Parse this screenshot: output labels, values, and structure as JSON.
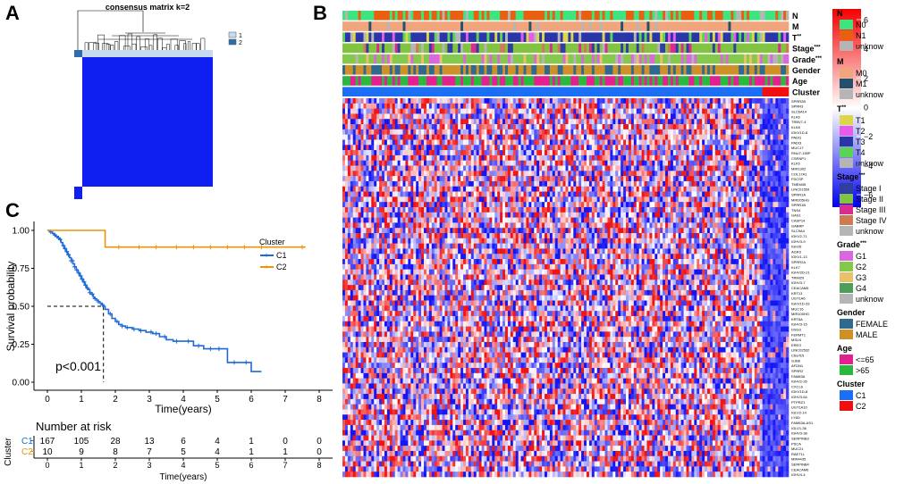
{
  "panels": {
    "a": {
      "letter": "A",
      "title": "consensus matrix k=2",
      "legend": [
        "1",
        "2"
      ],
      "colors": {
        "c1": "#c7dbef",
        "c2": "#2f6eaa",
        "matrix": "#0f1ff2",
        "white": "#ffffff"
      }
    },
    "b": {
      "letter": "B",
      "tracks": [
        {
          "name": "N",
          "sup": ""
        },
        {
          "name": "M",
          "sup": ""
        },
        {
          "name": "T",
          "sup": "**"
        },
        {
          "name": "Stage",
          "sup": "***"
        },
        {
          "name": "Grade",
          "sup": "***"
        },
        {
          "name": "Gender",
          "sup": ""
        },
        {
          "name": "Age",
          "sup": ""
        },
        {
          "name": "Cluster",
          "sup": ""
        }
      ],
      "genes": [
        "SPRR2B",
        "SPRR3",
        "SLC6A14",
        "KLK6",
        "TRBV7-4",
        "KLK8",
        "IGKV1D-8",
        "PADI1",
        "PADI3",
        "MUC17",
        "RNU7-155P",
        "CSRNP1",
        "KLK5",
        "MIR1302",
        "COL17A1",
        "FDCSP",
        "TMEM45",
        "LINC01559",
        "SPRR1A",
        "MIR205HG",
        "SPRR1B",
        "TNS4",
        "GAS1",
        "CASP14",
        "GABRP",
        "SLC9A4",
        "IGKV2-71",
        "IGHV3-9",
        "IGHJ6",
        "AGR3",
        "IGKV1-13",
        "SPRR2A",
        "KLK7",
        "IGHV2D-21",
        "TRIM29",
        "IGHV3-7",
        "CEACAM5",
        "KRT13",
        "UGT1A6",
        "IGKV1D-33",
        "MUC16",
        "MIR100HG",
        "KRT6A",
        "IGHV3-15",
        "DSG3",
        "FERMT1",
        "MSLN",
        "EREG",
        "LINC02532",
        "C6orf15",
        "GJB6",
        "AFDN1",
        "SPRR2",
        "FAM83A",
        "IGHV2-26",
        "CXCL6",
        "IGKV1D-8",
        "IGHV3-64",
        "PTPRZ1",
        "UGT1A10",
        "IGLV2-14",
        "LY6D",
        "FAM83A-AS1",
        "IGLV1-36",
        "IGHV3-38",
        "SERPINB3",
        "PSCA",
        "MUC21",
        "RAET1L",
        "MIR4435",
        "SERPINB4",
        "CEACAM6",
        "IGHV4-4"
      ],
      "colorbar_ticks": [
        "6",
        "4",
        "2",
        "0",
        "−2",
        "−4",
        "−6"
      ],
      "legend_groups": [
        {
          "title": "N",
          "sup": "",
          "items": [
            {
              "label": "N0",
              "color": "#3ee47e"
            },
            {
              "label": "N1",
              "color": "#e8600f"
            },
            {
              "label": "unknow",
              "color": "#b5b5b5"
            }
          ]
        },
        {
          "title": "M",
          "sup": "",
          "items": [
            {
              "label": "M0",
              "color": "#f1a57d"
            },
            {
              "label": "M1",
              "color": "#24506e"
            },
            {
              "label": "unknow",
              "color": "#b5b5b5"
            }
          ]
        },
        {
          "title": "T",
          "sup": "**",
          "items": [
            {
              "label": "T1",
              "color": "#dcd64a"
            },
            {
              "label": "T2",
              "color": "#e65be8"
            },
            {
              "label": "T3",
              "color": "#2a35a8"
            },
            {
              "label": "T4",
              "color": "#5bd356"
            },
            {
              "label": "unknow",
              "color": "#b5b5b5"
            }
          ]
        },
        {
          "title": "Stage",
          "sup": "***",
          "items": [
            {
              "label": "Stage I",
              "color": "#2f3f9e"
            },
            {
              "label": "Stage II",
              "color": "#82c341"
            },
            {
              "label": "Stage III",
              "color": "#d82c8f"
            },
            {
              "label": "Stage IV",
              "color": "#cf7b52"
            },
            {
              "label": "unknow",
              "color": "#b5b5b5"
            }
          ]
        },
        {
          "title": "Grade",
          "sup": "***",
          "items": [
            {
              "label": "G1",
              "color": "#d968dd"
            },
            {
              "label": "G2",
              "color": "#84c94c"
            },
            {
              "label": "G3",
              "color": "#e8c16a"
            },
            {
              "label": "G4",
              "color": "#4f9d5a"
            },
            {
              "label": "unknow",
              "color": "#b5b5b5"
            }
          ]
        },
        {
          "title": "Gender",
          "sup": "",
          "items": [
            {
              "label": "FEMALE",
              "color": "#2e6a8e"
            },
            {
              "label": "MALE",
              "color": "#cf9028"
            }
          ]
        },
        {
          "title": "Age",
          "sup": "",
          "items": [
            {
              "label": "<=65",
              "color": "#e3208f"
            },
            {
              "label": ">65",
              "color": "#2ab93e"
            }
          ]
        },
        {
          "title": "Cluster",
          "sup": "",
          "items": [
            {
              "label": "C1",
              "color": "#1b6ff5"
            },
            {
              "label": "C2",
              "color": "#f20e0e"
            }
          ]
        }
      ]
    },
    "c": {
      "letter": "C",
      "ylabel": "Survival probability",
      "xlabel": "Time(years)",
      "pvalue": "p<0.001",
      "legend_title": "Cluster",
      "risk_title": "Number at risk",
      "risk_ylabel": "Cluster",
      "risk_xlabel": "Time(years)",
      "series_colors": {
        "C1": "#1e6ad6",
        "C2": "#e8940c"
      }
    }
  },
  "chart_data": {
    "type": "line",
    "title": "",
    "xlabel": "Time(years)",
    "ylabel": "Survival probability",
    "xlim": [
      0,
      8
    ],
    "ylim": [
      0,
      1
    ],
    "xticks": [
      "0",
      "1",
      "2",
      "3",
      "4",
      "5",
      "6",
      "7",
      "8"
    ],
    "yticks": [
      "0.00",
      "0.25",
      "0.50",
      "0.75",
      "1.00"
    ],
    "median_survival_C1": 1.65,
    "series": [
      {
        "name": "C1",
        "x": [
          0,
          0.08,
          0.15,
          0.2,
          0.25,
          0.3,
          0.35,
          0.4,
          0.45,
          0.5,
          0.55,
          0.6,
          0.65,
          0.7,
          0.75,
          0.8,
          0.85,
          0.9,
          0.95,
          1.0,
          1.05,
          1.1,
          1.15,
          1.2,
          1.25,
          1.3,
          1.35,
          1.4,
          1.45,
          1.5,
          1.55,
          1.6,
          1.65,
          1.7,
          1.8,
          1.9,
          2.0,
          2.1,
          2.2,
          2.3,
          2.5,
          2.7,
          2.9,
          3.1,
          3.3,
          3.5,
          3.7,
          4.0,
          4.3,
          4.6,
          5.0,
          5.3,
          5.6,
          6.0,
          6.3
        ],
        "y": [
          1.0,
          0.99,
          0.98,
          0.97,
          0.96,
          0.95,
          0.94,
          0.92,
          0.9,
          0.88,
          0.86,
          0.84,
          0.82,
          0.8,
          0.78,
          0.76,
          0.74,
          0.72,
          0.7,
          0.68,
          0.66,
          0.64,
          0.62,
          0.61,
          0.59,
          0.58,
          0.56,
          0.55,
          0.54,
          0.53,
          0.52,
          0.51,
          0.5,
          0.48,
          0.45,
          0.42,
          0.4,
          0.38,
          0.37,
          0.36,
          0.35,
          0.34,
          0.33,
          0.32,
          0.3,
          0.28,
          0.27,
          0.27,
          0.24,
          0.22,
          0.22,
          0.13,
          0.13,
          0.07,
          0.07
        ]
      },
      {
        "name": "C2",
        "x": [
          0,
          1.7,
          7.6
        ],
        "y": [
          1.0,
          0.89,
          0.89
        ]
      }
    ],
    "censor_marks": {
      "C1": [
        0.1,
        0.22,
        0.33,
        0.38,
        0.47,
        0.52,
        0.57,
        0.62,
        0.7,
        0.74,
        0.8,
        0.86,
        0.92,
        0.98,
        1.02,
        1.08,
        1.12,
        1.18,
        1.25,
        1.32,
        1.4,
        1.5,
        1.62,
        1.85,
        2.05,
        2.2,
        2.35,
        2.55,
        2.75,
        3.05,
        3.2,
        3.45,
        3.8,
        4.15,
        4.45,
        4.8,
        5.05,
        5.5,
        5.85
      ],
      "C2": [
        2.1,
        2.7,
        3.2,
        3.8,
        4.3,
        4.8,
        5.3,
        5.8,
        6.3,
        7.5
      ]
    },
    "risk_table": {
      "times": [
        0,
        1,
        2,
        3,
        4,
        5,
        6,
        7,
        8
      ],
      "C1": [
        167,
        105,
        28,
        13,
        6,
        4,
        1,
        0,
        0
      ],
      "C2": [
        10,
        9,
        8,
        7,
        5,
        4,
        1,
        1,
        0
      ]
    }
  }
}
